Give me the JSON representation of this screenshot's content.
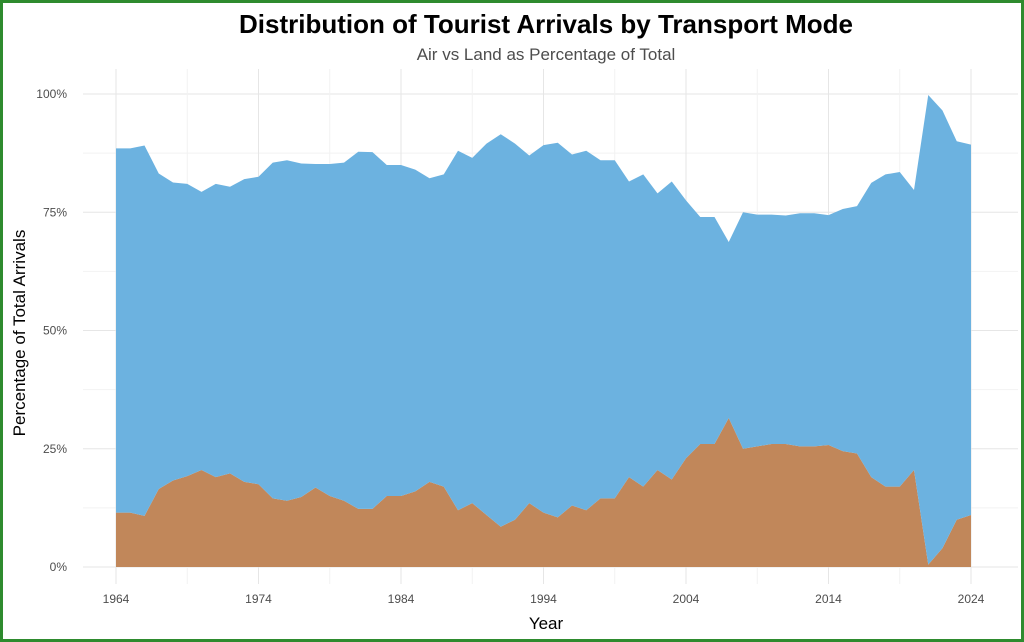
{
  "chart_data": {
    "type": "area",
    "stacked": true,
    "title": "Distribution of Tourist Arrivals by Transport Mode",
    "subtitle": "Air vs Land as Percentage of Total",
    "xlabel": "Year",
    "ylabel": "Percentage of Total Arrivals",
    "xlim": [
      1964,
      2024
    ],
    "ylim": [
      0,
      100
    ],
    "x_ticks": [
      1964,
      1974,
      1984,
      1994,
      2004,
      2014,
      2024
    ],
    "y_ticks": [
      0,
      25,
      50,
      75,
      100
    ],
    "y_tick_labels": [
      "0%",
      "25%",
      "50%",
      "75%",
      "100%"
    ],
    "grid": true,
    "legend": "none",
    "x": [
      1964,
      1965,
      1966,
      1967,
      1968,
      1969,
      1970,
      1971,
      1972,
      1973,
      1974,
      1975,
      1976,
      1977,
      1978,
      1979,
      1980,
      1981,
      1982,
      1983,
      1984,
      1985,
      1986,
      1987,
      1988,
      1989,
      1990,
      1991,
      1992,
      1993,
      1994,
      1995,
      1996,
      1997,
      1998,
      1999,
      2000,
      2001,
      2002,
      2003,
      2004,
      2005,
      2006,
      2007,
      2008,
      2009,
      2010,
      2011,
      2012,
      2013,
      2014,
      2015,
      2016,
      2017,
      2018,
      2019,
      2020,
      2021,
      2022,
      2023,
      2024
    ],
    "series": [
      {
        "key": "land",
        "color": "#c1875a",
        "values": [
          11.5,
          11.5,
          10.8,
          16.5,
          18.3,
          19.2,
          20.5,
          19,
          19.8,
          18,
          17.5,
          14.5,
          14,
          14.8,
          16.8,
          15,
          14,
          12.3,
          12.3,
          15,
          15,
          16,
          18,
          17,
          12,
          13.5,
          11,
          8.5,
          10,
          13.5,
          11.5,
          10.5,
          13,
          12,
          14.5,
          14.5,
          19,
          17,
          20.5,
          18.5,
          23,
          26,
          26,
          31.5,
          25,
          25.5,
          26,
          26,
          25.5,
          25.5,
          25.8,
          24.5,
          24,
          19,
          17,
          17,
          20.5,
          0.5,
          4,
          10,
          11
        ]
      },
      {
        "key": "air",
        "color": "#6cb2e0",
        "values": [
          77,
          77,
          78.3,
          66.7,
          63,
          61.8,
          58.8,
          62,
          60.6,
          64,
          65,
          71,
          72,
          70.5,
          68.4,
          70.2,
          71.5,
          75.5,
          75.4,
          70,
          70,
          68,
          64.2,
          66,
          76,
          73,
          78.5,
          83,
          79.5,
          73.5,
          77.7,
          79.2,
          74.2,
          76,
          71.5,
          71.5,
          62.5,
          66,
          58.5,
          63,
          54.5,
          48,
          48,
          37.2,
          50,
          49,
          48.5,
          48.3,
          49.3,
          49.3,
          48.6,
          51.2,
          52.3,
          62.2,
          66,
          66.5,
          59.2,
          99.3,
          92.5,
          80,
          78.3
        ]
      }
    ]
  }
}
